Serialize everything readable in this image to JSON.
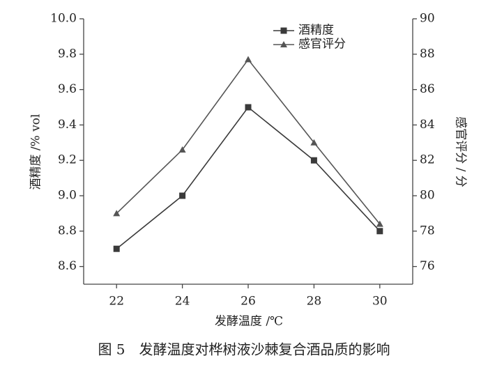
{
  "chart_data": {
    "type": "line",
    "caption": "图 5　发酵温度对桦树液沙棘复合酒品质的影响",
    "x_label": "发酵温度 /℃",
    "y_label": "酒精度 /% vol",
    "y2_label": "感官评分 / 分",
    "x": [
      22,
      24,
      26,
      28,
      30
    ],
    "xlim": [
      21,
      31
    ],
    "xticks": [
      22,
      24,
      26,
      28,
      30
    ],
    "ylim": [
      8.5,
      10.0
    ],
    "yticks": [
      8.6,
      8.8,
      {
        "value": 9.0,
        "label": "9.0"
      },
      9.2,
      9.4,
      9.6,
      9.8,
      {
        "value": 10.0,
        "label": "10.0"
      }
    ],
    "y2lim": [
      75,
      90
    ],
    "y2ticks": [
      76,
      78,
      80,
      82,
      84,
      86,
      88,
      90
    ],
    "legend": "top",
    "series": [
      {
        "name": "酒精度",
        "color": "#3a3a3a",
        "marker": "square",
        "values": [
          8.7,
          9.0,
          9.5,
          9.2,
          8.8
        ]
      },
      {
        "name": "感官评分",
        "color": "#555555",
        "marker": "triangle",
        "axis": "y2",
        "values": [
          79.0,
          82.6,
          87.7,
          83.0,
          78.4
        ]
      }
    ]
  }
}
